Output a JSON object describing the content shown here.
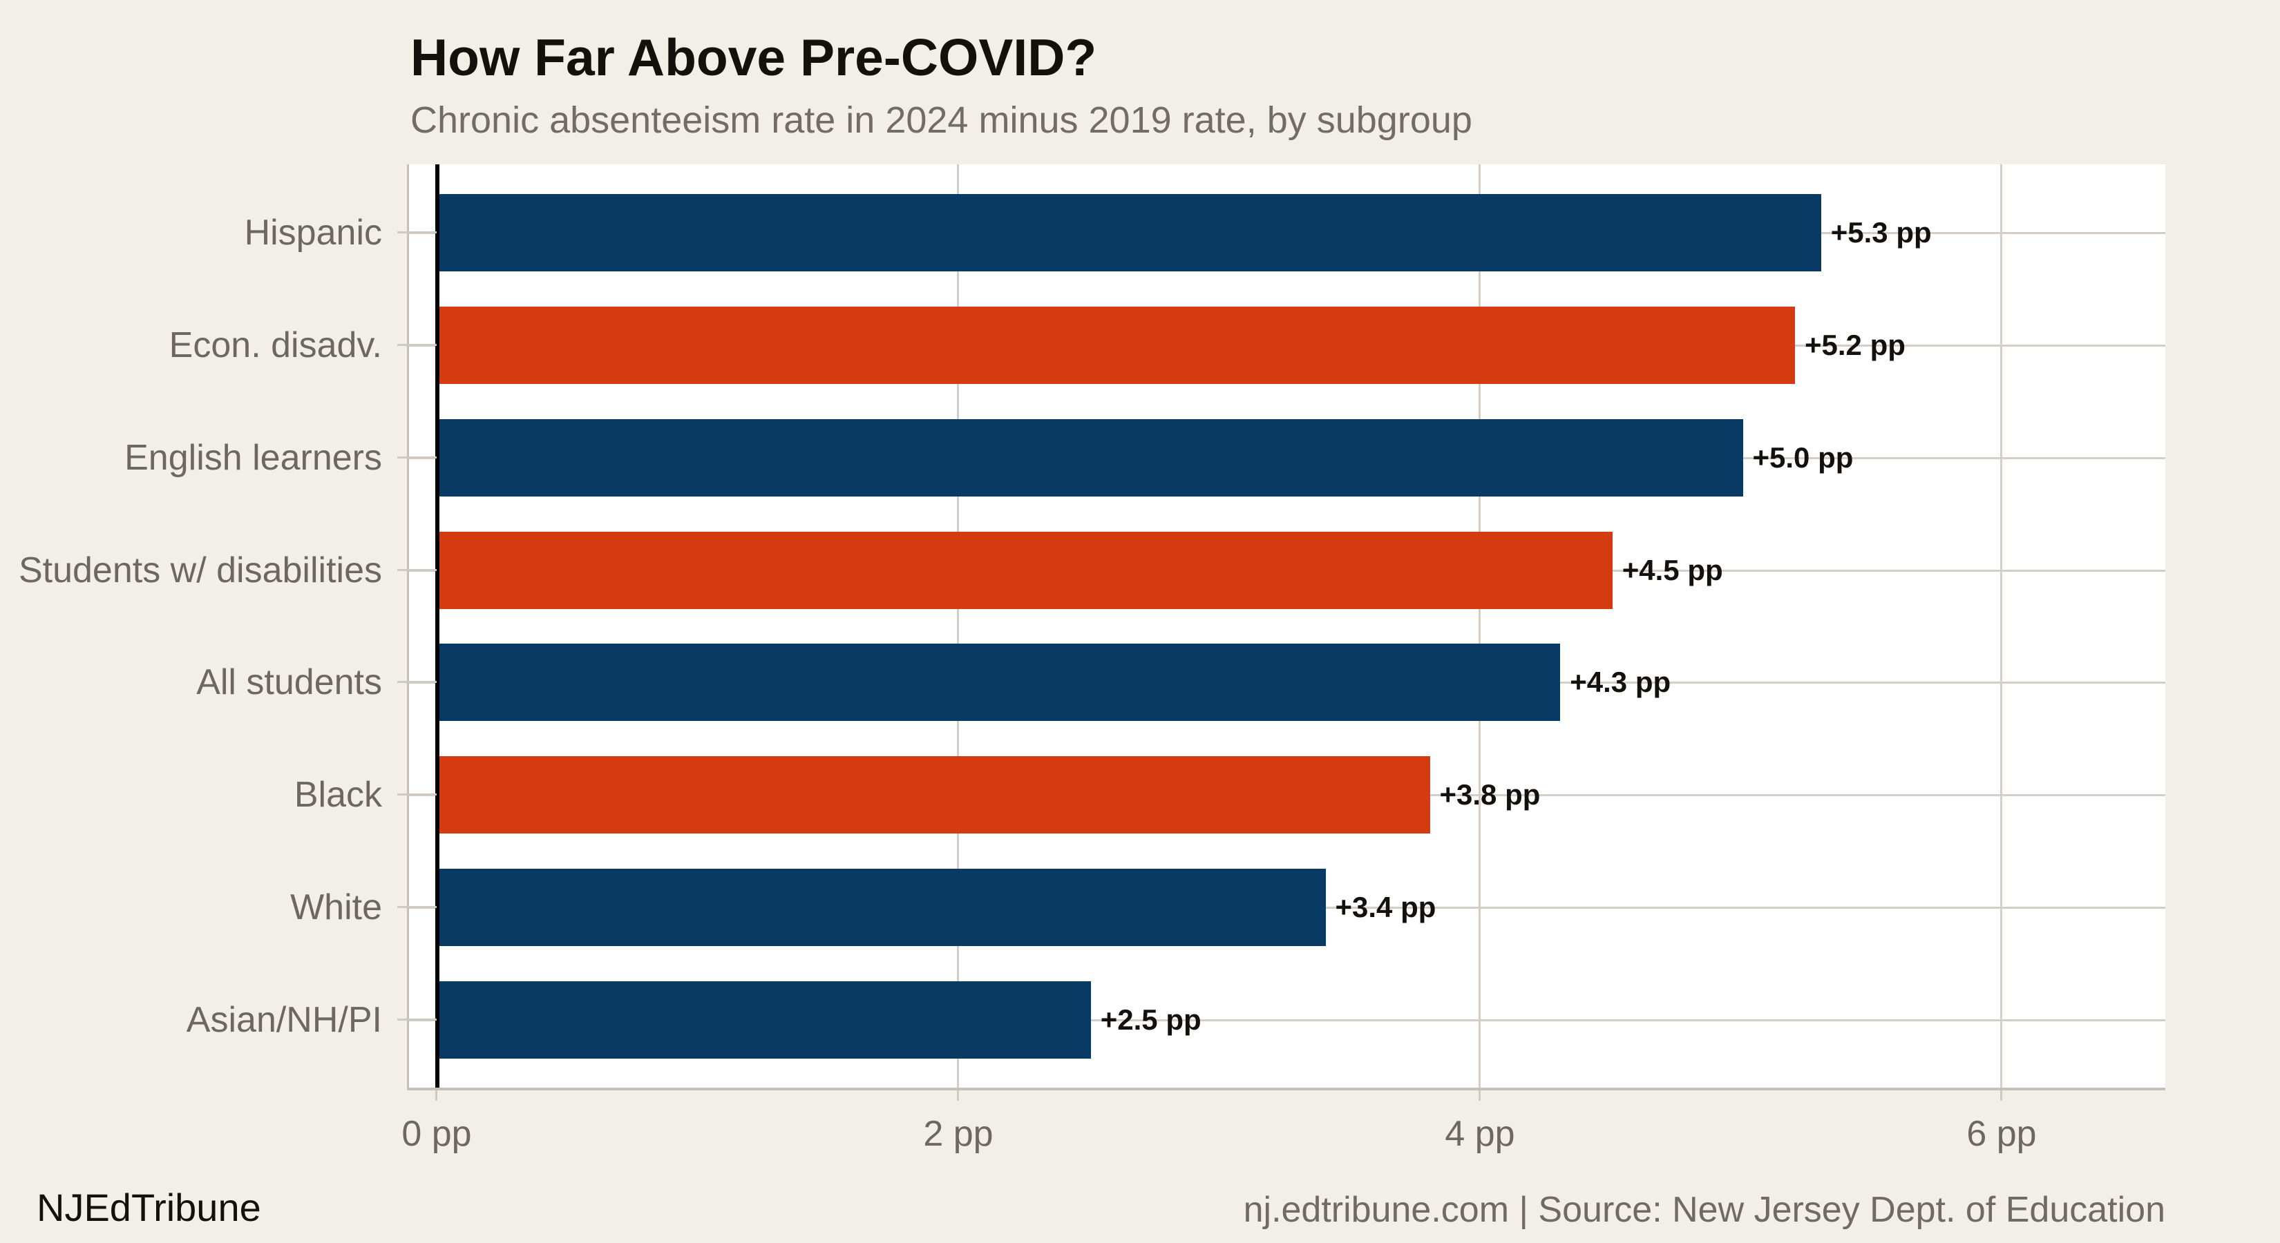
{
  "page": {
    "background": "#f2efe9",
    "footer_left": "NJEdTribune",
    "footer_right": "nj.edtribune.com | Source: New Jersey Dept. of Education"
  },
  "chart_data": {
    "type": "bar",
    "orientation": "horizontal",
    "title": "How Far Above Pre-COVID?",
    "subtitle": "Chronic absenteeism rate in 2024 minus 2019 rate, by subgroup",
    "categories": [
      "Hispanic",
      "Econ. disadv.",
      "English learners",
      "Students w/ disabilities",
      "All students",
      "Black",
      "White",
      "Asian/NH/PI"
    ],
    "values": [
      5.3,
      5.2,
      5.0,
      4.5,
      4.3,
      3.8,
      3.4,
      2.5
    ],
    "value_labels": [
      "+5.3 pp",
      "+5.2 pp",
      "+5.0 pp",
      "+4.5 pp",
      "+4.3 pp",
      "+3.8 pp",
      "+3.4 pp",
      "+2.5 pp"
    ],
    "bar_colors": [
      "#083a64",
      "#d53b10",
      "#083a64",
      "#d53b10",
      "#083a64",
      "#d53b10",
      "#083a64",
      "#083a64"
    ],
    "x_ticks": [
      {
        "label": "0 pp",
        "value": 0
      },
      {
        "label": "2 pp",
        "value": 2
      },
      {
        "label": "4 pp",
        "value": 4
      },
      {
        "label": "6 pp",
        "value": 6
      }
    ],
    "unit": "pp",
    "xlim": [
      -0.11,
      6.63
    ],
    "grid": true,
    "legend": false,
    "colors": {
      "navy": "#083a64",
      "red": "#d53b10",
      "plot_background": "#ffffff",
      "page_background": "#f2efe9",
      "gridline": "#d5cec6",
      "axis_border": "#c6c0b7",
      "zero_line": "#000000",
      "text_gray": "#6c6861",
      "text_black": "#14110c"
    }
  }
}
